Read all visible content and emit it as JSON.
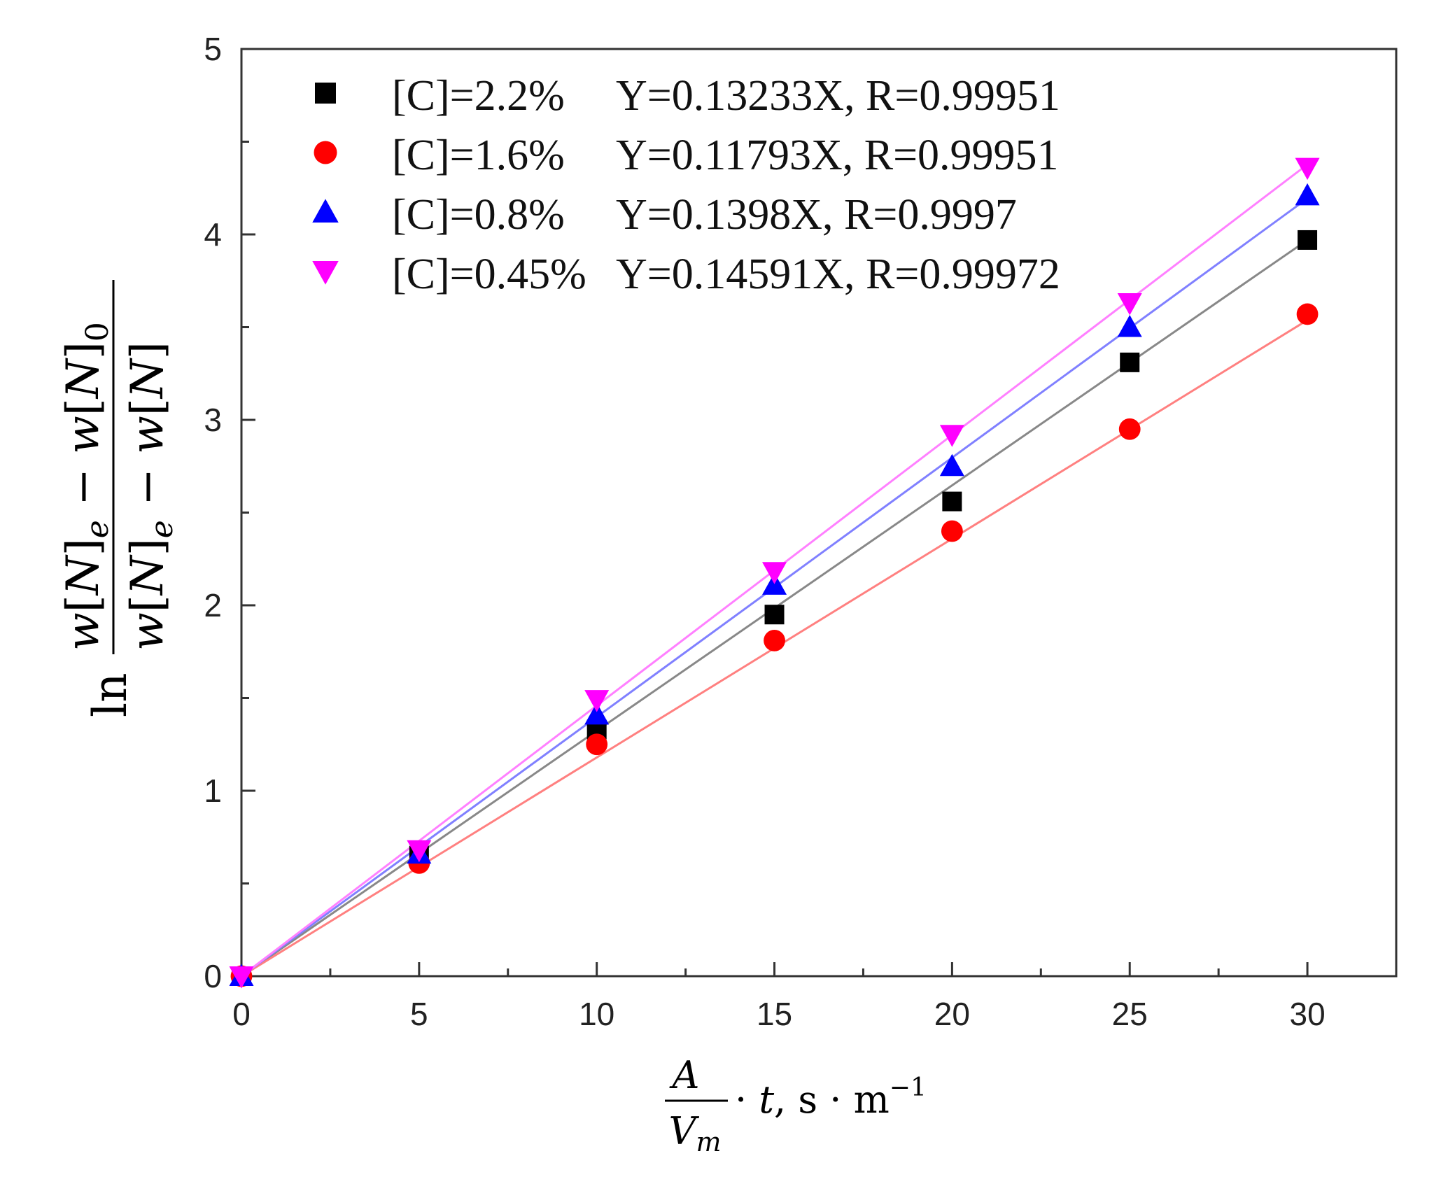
{
  "chart_data": {
    "type": "scatter",
    "title": "",
    "xlabel": "A/V_m · t, s · m^-1",
    "ylabel": "ln (w[N]_e − w[N]_0)/(w[N]_e − w[N])",
    "xlim": [
      0,
      32.5
    ],
    "ylim": [
      0,
      5
    ],
    "x_ticks": [
      0,
      5,
      10,
      15,
      20,
      25,
      30
    ],
    "y_ticks": [
      0,
      1,
      2,
      3,
      4,
      5
    ],
    "x": [
      0,
      5,
      10,
      15,
      20,
      25,
      30
    ],
    "legend_position": "top-left",
    "series": [
      {
        "name": "[C]=2.2%",
        "equation": "Y=0.13233X, R=0.99951",
        "marker": "square",
        "color": "#000000",
        "line_color": "#888888",
        "slope": 0.13233,
        "values": [
          0,
          0.65,
          1.33,
          1.95,
          2.56,
          3.31,
          3.97
        ]
      },
      {
        "name": "[C]=1.6%",
        "equation": "Y=0.11793X, R=0.99951",
        "marker": "circle",
        "color": "#ff0000",
        "line_color": "#ff8080",
        "slope": 0.11793,
        "values": [
          0,
          0.61,
          1.25,
          1.81,
          2.4,
          2.95,
          3.57
        ]
      },
      {
        "name": "[C]=0.8%",
        "equation": "Y=0.1398X, R=0.9997",
        "marker": "triangle-up",
        "color": "#0000ff",
        "line_color": "#8080ff",
        "slope": 0.1398,
        "values": [
          0,
          0.66,
          1.41,
          2.11,
          2.75,
          3.5,
          4.21
        ]
      },
      {
        "name": "[C]=0.45%",
        "equation": "Y=0.14591X, R=0.99972",
        "marker": "triangle-down",
        "color": "#ff00ff",
        "line_color": "#ff80ff",
        "slope": 0.14591,
        "values": [
          0,
          0.68,
          1.49,
          2.18,
          2.92,
          3.63,
          4.36
        ]
      }
    ]
  }
}
